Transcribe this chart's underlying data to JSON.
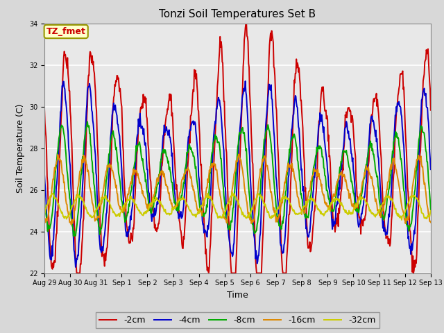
{
  "title": "Tonzi Soil Temperatures Set B",
  "xlabel": "Time",
  "ylabel": "Soil Temperature (C)",
  "ylim": [
    22,
    34
  ],
  "yticks": [
    22,
    24,
    26,
    28,
    30,
    32,
    34
  ],
  "fig_bg_color": "#d8d8d8",
  "plot_bg_color": "#e8e8e8",
  "series_colors": [
    "#cc0000",
    "#0000cc",
    "#00aa00",
    "#dd8800",
    "#cccc00"
  ],
  "series_labels": [
    "-2cm",
    "-4cm",
    "-8cm",
    "-16cm",
    "-32cm"
  ],
  "series_lw": [
    1.4,
    1.4,
    1.4,
    1.4,
    1.4
  ],
  "xtick_labels": [
    "Aug 29",
    "Aug 30",
    "Aug 31",
    "Sep 1",
    "Sep 2",
    "Sep 3",
    "Sep 4",
    "Sep 5",
    "Sep 6",
    "Sep 7",
    "Sep 8",
    "Sep 9",
    "Sep 10",
    "Sep 11",
    "Sep 12",
    "Sep 13"
  ],
  "legend_text": "TZ_fmet",
  "legend_facecolor": "#ffffcc",
  "legend_edgecolor": "#999900",
  "grid_color": "#ffffff",
  "tick_fontsize": 7,
  "title_fontsize": 11
}
